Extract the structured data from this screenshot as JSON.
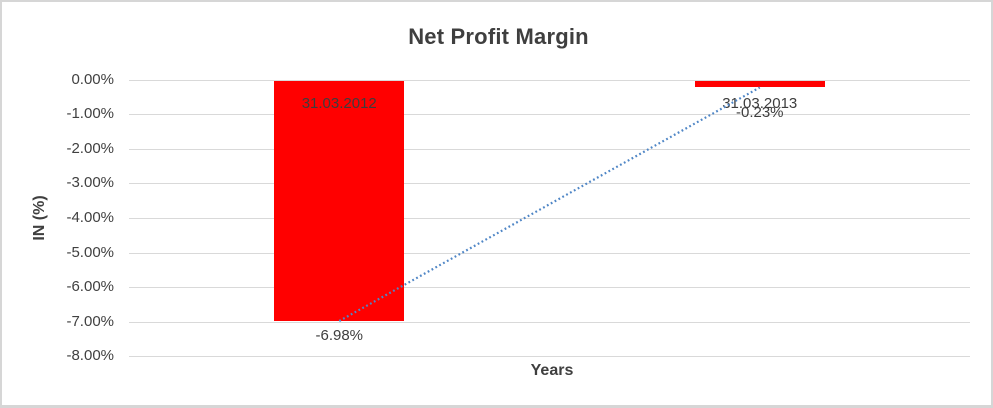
{
  "chart_data": {
    "type": "bar",
    "title": "Net Profit Margin",
    "xlabel": "Years",
    "ylabel": "IN (%)",
    "categories": [
      "31.03.2012",
      "31.03.2013"
    ],
    "series": [
      {
        "name": "Net Profit Margin",
        "values": [
          -6.98,
          -0.23
        ]
      }
    ],
    "value_labels": [
      "-6.98%",
      "-0.23%"
    ],
    "ylim": [
      -8,
      0
    ],
    "ytick_values": [
      0,
      -1,
      -2,
      -3,
      -4,
      -5,
      -6,
      -7,
      -8
    ],
    "ytick_labels": [
      "0.00%",
      "-1.00%",
      "-2.00%",
      "-3.00%",
      "-4.00%",
      "-5.00%",
      "-6.00%",
      "-7.00%",
      "-8.00%"
    ],
    "grid": true,
    "legend": "none",
    "bar_color": "#ff0000",
    "gridline_color": "#d9d9d9",
    "text_color": "#404040",
    "trendline": {
      "type": "linear",
      "style": "dotted",
      "color": "#4f86c6",
      "points": [
        {
          "category": "31.03.2012",
          "value": -6.98
        },
        {
          "category": "31.03.2013",
          "value": -0.23
        }
      ]
    }
  }
}
